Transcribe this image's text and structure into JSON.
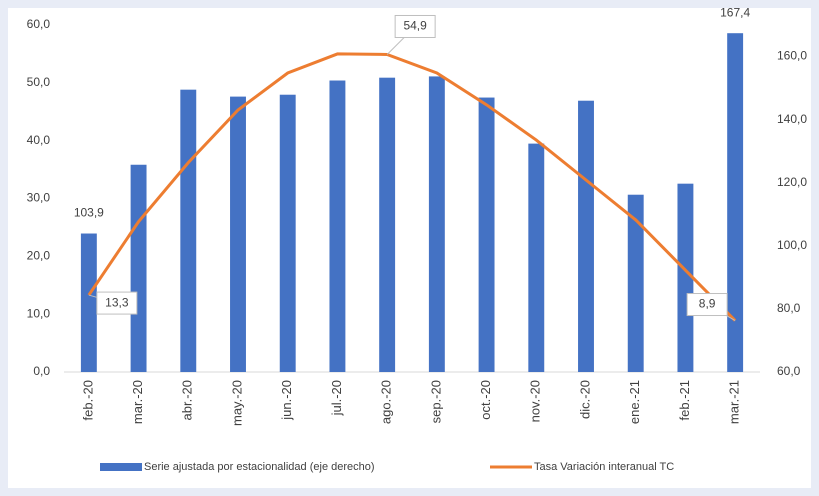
{
  "chart_data": {
    "type": "bar-line",
    "categories": [
      "feb.-20",
      "mar.-20",
      "abr.-20",
      "may.-20",
      "jun.-20",
      "jul.-20",
      "ago.-20",
      "sep.-20",
      "oct.-20",
      "nov.-20",
      "dic.-20",
      "ene.-21",
      "feb.-21",
      "mar.-21"
    ],
    "series": [
      {
        "name": "Serie ajustada por estacionalidad (eje derecho)",
        "type": "bar",
        "axis": "y2",
        "color": "#4472c4",
        "values": [
          103.9,
          125.7,
          149.5,
          147.3,
          147.9,
          152.4,
          153.3,
          153.7,
          147.0,
          132.4,
          146.0,
          116.2,
          119.7,
          167.4
        ],
        "value_labels": [
          "103,9",
          null,
          null,
          null,
          null,
          null,
          null,
          null,
          null,
          null,
          null,
          null,
          null,
          "167,4"
        ]
      },
      {
        "name": "Tasa Variación interanual TC",
        "type": "line",
        "color": "#ed7d31",
        "values": [
          13.3,
          26.0,
          36.2,
          45.3,
          51.7,
          55.0,
          54.9,
          51.7,
          46.2,
          40.1,
          33.2,
          26.3,
          17.6,
          8.9
        ],
        "value_labels": [
          "13,3",
          null,
          null,
          null,
          null,
          null,
          "54,9",
          null,
          null,
          null,
          null,
          null,
          null,
          "8,9"
        ]
      }
    ],
    "ylim": [
      0,
      60
    ],
    "yticks": [
      {
        "value": 0,
        "label": "0,0"
      },
      {
        "value": 10,
        "label": "10,0"
      },
      {
        "value": 20,
        "label": "20,0"
      },
      {
        "value": 30,
        "label": "30,0"
      },
      {
        "value": 40,
        "label": "40,0"
      },
      {
        "value": 50,
        "label": "50,0"
      },
      {
        "value": 60,
        "label": "60,0"
      }
    ],
    "y2lim": [
      60,
      170
    ],
    "y2ticks": [
      {
        "value": 60,
        "label": "60,0"
      },
      {
        "value": 80,
        "label": "80,0"
      },
      {
        "value": 100,
        "label": "100,0"
      },
      {
        "value": 120,
        "label": "120,0"
      },
      {
        "value": 140,
        "label": "140,0"
      },
      {
        "value": 160,
        "label": "160,0"
      }
    ]
  }
}
